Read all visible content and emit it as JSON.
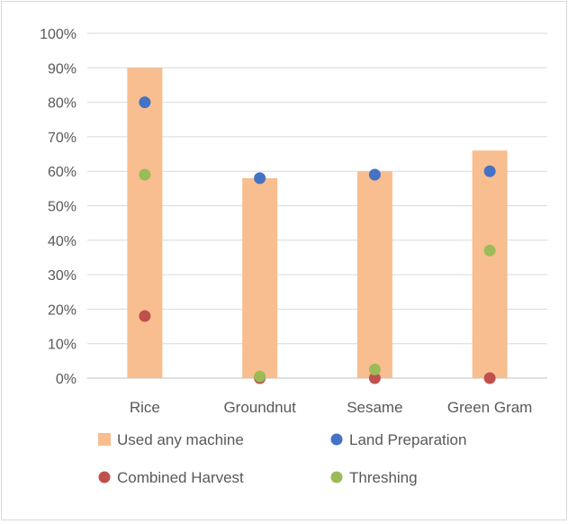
{
  "chart_data": {
    "type": "bar",
    "categories": [
      "Rice",
      "Groundnut",
      "Sesame",
      "Green Gram"
    ],
    "y_ticks": [
      "0%",
      "10%",
      "20%",
      "30%",
      "40%",
      "50%",
      "60%",
      "70%",
      "80%",
      "90%",
      "100%"
    ],
    "ylim": [
      0,
      100
    ],
    "grid": true,
    "legend_position": "bottom",
    "series": [
      {
        "name": "Used any machine",
        "mark": "bar",
        "color": "#f8be8f",
        "values": [
          90,
          58,
          60,
          66
        ]
      },
      {
        "name": "Land Preparation",
        "mark": "point",
        "color": "#4472c4",
        "values": [
          80,
          58,
          59,
          60
        ]
      },
      {
        "name": "Combined Harvest",
        "mark": "point",
        "color": "#c0504d",
        "values": [
          18,
          0,
          0,
          0
        ]
      },
      {
        "name": "Threshing",
        "mark": "point",
        "color": "#9bbb59",
        "values": [
          59,
          0.5,
          2.5,
          37
        ]
      }
    ]
  }
}
